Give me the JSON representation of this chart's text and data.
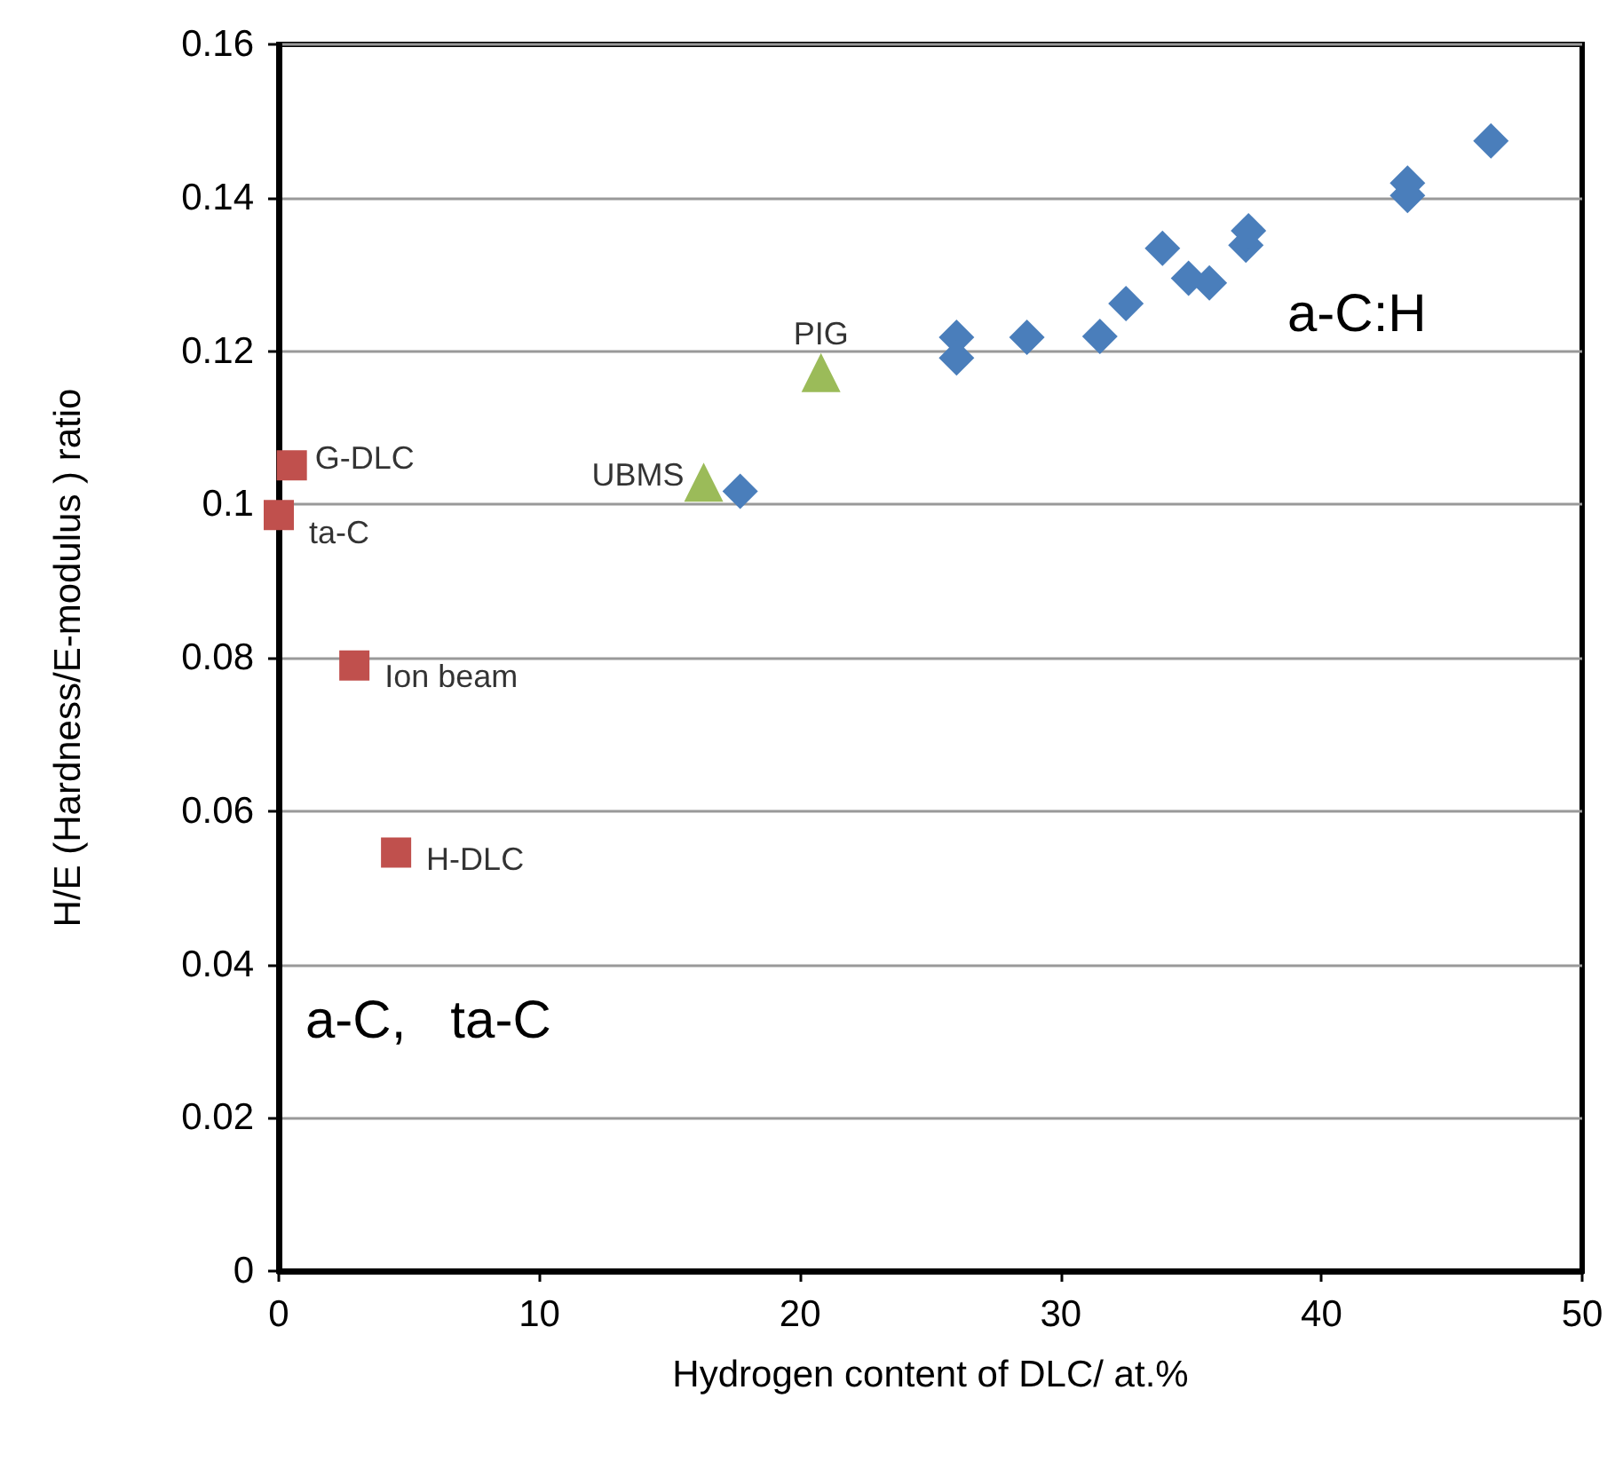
{
  "chart_data": {
    "type": "scatter",
    "xlabel": "Hydrogen content of DLC/ at.%",
    "ylabel": "H/E (Hardness/E-modulus ) ratio",
    "xlim": [
      0,
      50
    ],
    "xticks": [
      0,
      10,
      20,
      30,
      40,
      50
    ],
    "ylim": [
      0,
      0.16
    ],
    "yticks": [
      0,
      0.02,
      0.04,
      0.06,
      0.08,
      0.1,
      0.12,
      0.14,
      0.16
    ],
    "grid": "y",
    "series": [
      {
        "color": "#4a7ebb",
        "marker": "diamond",
        "x": [
          17.7,
          26.0,
          26.0,
          28.7,
          31.5,
          32.5,
          33.9,
          34.9,
          35.7,
          37.1,
          37.2,
          43.3,
          43.3,
          46.5
        ],
        "values": [
          0.1017,
          0.1218,
          0.1191,
          0.1218,
          0.1219,
          0.1262,
          0.1334,
          0.1295,
          0.1289,
          0.1338,
          0.1357,
          0.1419,
          0.1403,
          0.1474
        ]
      },
      {
        "color": "#c0504d",
        "marker": "square",
        "x": [
          0.5,
          0,
          2.9,
          4.5
        ],
        "values": [
          0.1051,
          0.0986,
          0.079,
          0.0546
        ]
      },
      {
        "color": "#9bbb59",
        "marker": "triangle",
        "x": [
          16.3,
          20.8
        ],
        "values": [
          0.1029,
          0.1172
        ]
      }
    ],
    "annotations": [
      {
        "text": "G-DLC",
        "x": 0.5,
        "y": 0.1051
      },
      {
        "text": "ta-C",
        "x": 0,
        "y": 0.0986
      },
      {
        "text": "Ion beam",
        "x": 2.9,
        "y": 0.079
      },
      {
        "text": "H-DLC",
        "x": 4.5,
        "y": 0.0546
      },
      {
        "text": "UBMS",
        "x": 16.3,
        "y": 0.1029
      },
      {
        "text": "PIG",
        "x": 20.8,
        "y": 0.1172
      },
      "a-C:H",
      "a-C,   ta-C"
    ]
  }
}
